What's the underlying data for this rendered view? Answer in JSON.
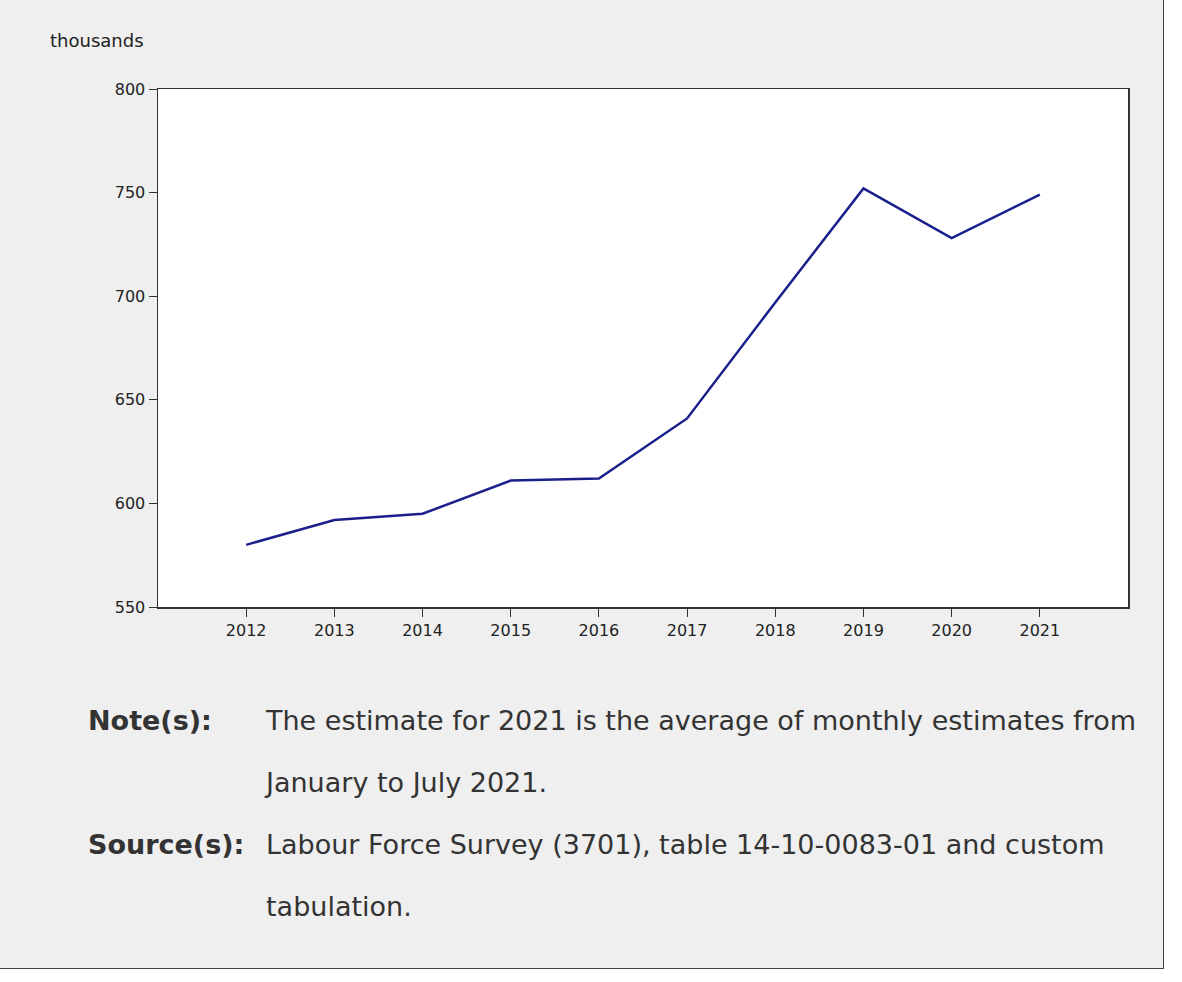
{
  "chart_data": {
    "type": "line",
    "y_label": "thousands",
    "x": [
      2012,
      2013,
      2014,
      2015,
      2016,
      2017,
      2018,
      2019,
      2020,
      2021
    ],
    "series": [
      {
        "name": null,
        "color": "#1a1f8c",
        "values": [
          580,
          592,
          595,
          611,
          612,
          641,
          697,
          752,
          728,
          749
        ]
      }
    ],
    "xlim": [
      2011,
      2022
    ],
    "xticks": [
      2012,
      2013,
      2014,
      2015,
      2016,
      2017,
      2018,
      2019,
      2020,
      2021
    ],
    "ylim": [
      550,
      800
    ],
    "yticks": [
      550,
      600,
      650,
      700,
      750,
      800
    ],
    "grid": false,
    "annotations": [
      {
        "label": "Note(s):",
        "text": "The estimate for 2021 is the average of monthly estimates from January to July 2021."
      },
      {
        "label": "Source(s):",
        "text": "Labour Force Survey (3701), table 14-10-0083-01 and custom tabulation."
      }
    ]
  }
}
